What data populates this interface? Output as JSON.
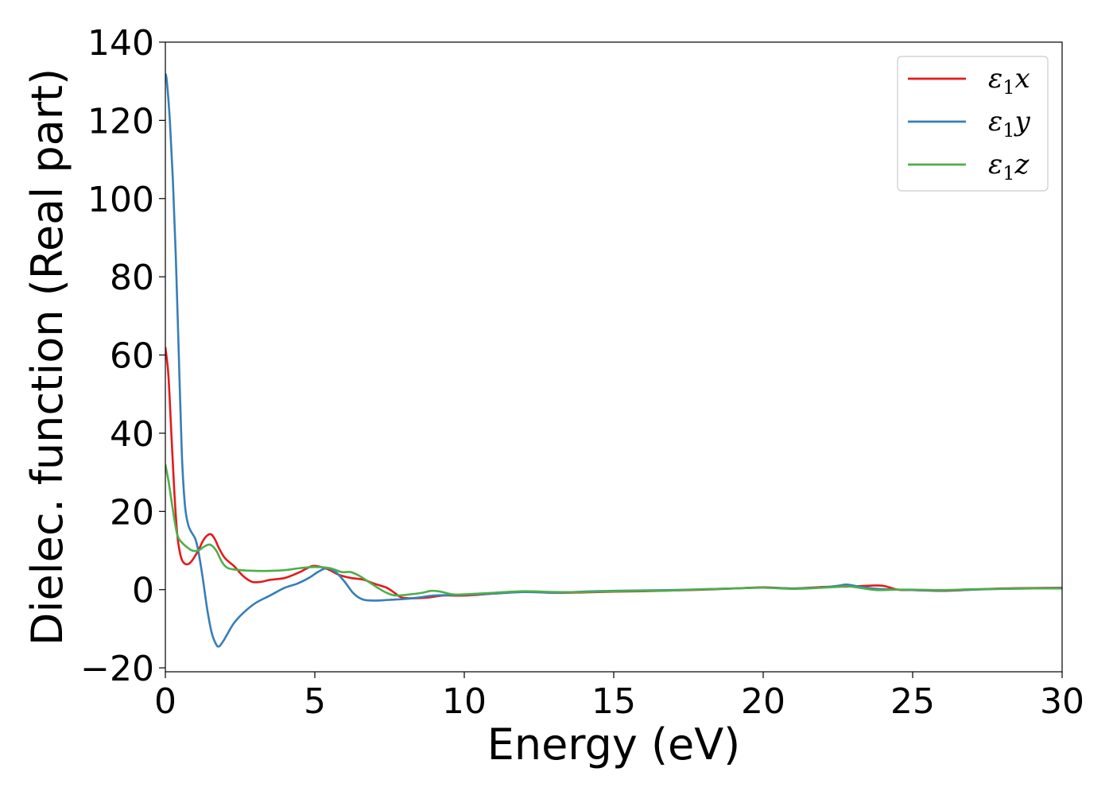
{
  "chart_data": {
    "type": "line",
    "title": "",
    "xlabel": "Energy (eV)",
    "ylabel": "Dielec. function (Real part)",
    "xlim": [
      0,
      30
    ],
    "ylim": [
      -21,
      140
    ],
    "xticks": [
      0,
      5,
      10,
      15,
      20,
      25,
      30
    ],
    "xtick_labels": [
      "0",
      "5",
      "10",
      "15",
      "20",
      "25",
      "30"
    ],
    "yticks": [
      -20,
      0,
      20,
      40,
      60,
      80,
      100,
      120,
      140
    ],
    "ytick_labels": [
      "−20",
      "0",
      "20",
      "40",
      "60",
      "80",
      "100",
      "120",
      "140"
    ],
    "grid": false,
    "legend_position": "top-right",
    "series": [
      {
        "name": "ε1x",
        "legend_symbol": "ε",
        "legend_subscript": "1",
        "legend_suffix": "x",
        "color": "#e41a1c",
        "points": [
          [
            0,
            62
          ],
          [
            0.1,
            55
          ],
          [
            0.2,
            40
          ],
          [
            0.3,
            25
          ],
          [
            0.4,
            14
          ],
          [
            0.5,
            9
          ],
          [
            0.6,
            7
          ],
          [
            0.75,
            6.5
          ],
          [
            0.9,
            7.5
          ],
          [
            1.1,
            10
          ],
          [
            1.3,
            13
          ],
          [
            1.5,
            14.2
          ],
          [
            1.65,
            13
          ],
          [
            1.8,
            10.5
          ],
          [
            2.0,
            8
          ],
          [
            2.3,
            6
          ],
          [
            2.6,
            3.5
          ],
          [
            2.9,
            2
          ],
          [
            3.2,
            2
          ],
          [
            3.5,
            2.5
          ],
          [
            4.0,
            3
          ],
          [
            4.5,
            4.5
          ],
          [
            4.9,
            6
          ],
          [
            5.2,
            5.8
          ],
          [
            5.5,
            5
          ],
          [
            5.8,
            3.8
          ],
          [
            6.2,
            3
          ],
          [
            6.6,
            2.6
          ],
          [
            7.0,
            1.5
          ],
          [
            7.4,
            0.5
          ],
          [
            7.7,
            -1
          ],
          [
            7.9,
            -2
          ],
          [
            8.3,
            -2.2
          ],
          [
            8.8,
            -2
          ],
          [
            9.3,
            -1.5
          ],
          [
            10,
            -1.5
          ],
          [
            11,
            -1
          ],
          [
            12,
            -0.5
          ],
          [
            13,
            -0.8
          ],
          [
            14,
            -0.7
          ],
          [
            15,
            -0.5
          ],
          [
            16,
            -0.4
          ],
          [
            17,
            -0.2
          ],
          [
            18,
            0
          ],
          [
            19,
            0.3
          ],
          [
            20,
            0.6
          ],
          [
            21,
            0.3
          ],
          [
            22,
            0.7
          ],
          [
            22.9,
            0.8
          ],
          [
            23.5,
            1
          ],
          [
            24,
            1
          ],
          [
            24.5,
            0
          ],
          [
            25,
            -0.1
          ],
          [
            26,
            -0.3
          ],
          [
            27,
            0
          ],
          [
            28,
            0.3
          ],
          [
            29,
            0.4
          ],
          [
            30,
            0.5
          ]
        ]
      },
      {
        "name": "ε1y",
        "legend_symbol": "ε",
        "legend_subscript": "1",
        "legend_suffix": "y",
        "color": "#377eb8",
        "points": [
          [
            0,
            132
          ],
          [
            0.05,
            130
          ],
          [
            0.15,
            120
          ],
          [
            0.25,
            105
          ],
          [
            0.35,
            85
          ],
          [
            0.45,
            60
          ],
          [
            0.55,
            35
          ],
          [
            0.65,
            22
          ],
          [
            0.75,
            17
          ],
          [
            0.85,
            15
          ],
          [
            1.0,
            13
          ],
          [
            1.1,
            10
          ],
          [
            1.25,
            3
          ],
          [
            1.4,
            -5
          ],
          [
            1.55,
            -11
          ],
          [
            1.7,
            -14
          ],
          [
            1.8,
            -14.5
          ],
          [
            1.95,
            -13
          ],
          [
            2.1,
            -11
          ],
          [
            2.3,
            -8.5
          ],
          [
            2.6,
            -6
          ],
          [
            3.0,
            -3.5
          ],
          [
            3.5,
            -1.5
          ],
          [
            4.0,
            0.5
          ],
          [
            4.4,
            1.5
          ],
          [
            4.8,
            3
          ],
          [
            5.1,
            4.5
          ],
          [
            5.4,
            5.5
          ],
          [
            5.7,
            4.5
          ],
          [
            6.0,
            2
          ],
          [
            6.3,
            -1
          ],
          [
            6.6,
            -2.5
          ],
          [
            7.0,
            -2.8
          ],
          [
            7.5,
            -2.6
          ],
          [
            8.0,
            -2.4
          ],
          [
            8.5,
            -2
          ],
          [
            9,
            -1.5
          ],
          [
            10,
            -1.3
          ],
          [
            11,
            -1
          ],
          [
            12,
            -0.6
          ],
          [
            13,
            -0.8
          ],
          [
            14,
            -0.5
          ],
          [
            15,
            -0.3
          ],
          [
            16,
            -0.2
          ],
          [
            17,
            -0.1
          ],
          [
            18,
            0.1
          ],
          [
            19,
            0.3
          ],
          [
            20,
            0.5
          ],
          [
            21,
            0.3
          ],
          [
            22,
            0.6
          ],
          [
            22.5,
            1.0
          ],
          [
            22.8,
            1.3
          ],
          [
            23.2,
            0.8
          ],
          [
            23.8,
            0.2
          ],
          [
            24.5,
            0
          ],
          [
            25,
            -0.1
          ],
          [
            26,
            -0.2
          ],
          [
            27,
            0
          ],
          [
            28,
            0.2
          ],
          [
            29,
            0.3
          ],
          [
            30,
            0.4
          ]
        ]
      },
      {
        "name": "ε1z",
        "legend_symbol": "ε",
        "legend_subscript": "1",
        "legend_suffix": "z",
        "color": "#4daf4a",
        "points": [
          [
            0,
            32
          ],
          [
            0.1,
            28
          ],
          [
            0.2,
            23
          ],
          [
            0.3,
            18
          ],
          [
            0.4,
            14
          ],
          [
            0.5,
            12.5
          ],
          [
            0.7,
            11
          ],
          [
            0.9,
            10
          ],
          [
            1.1,
            10
          ],
          [
            1.3,
            11
          ],
          [
            1.5,
            11.5
          ],
          [
            1.7,
            10
          ],
          [
            1.9,
            7
          ],
          [
            2.1,
            5.5
          ],
          [
            2.5,
            5
          ],
          [
            3.0,
            4.8
          ],
          [
            3.5,
            4.8
          ],
          [
            4.0,
            5
          ],
          [
            4.5,
            5.5
          ],
          [
            5.0,
            5.8
          ],
          [
            5.5,
            5.5
          ],
          [
            5.9,
            4.5
          ],
          [
            6.2,
            4.5
          ],
          [
            6.5,
            3.5
          ],
          [
            6.8,
            2
          ],
          [
            7.1,
            0.5
          ],
          [
            7.4,
            -0.8
          ],
          [
            7.7,
            -1.5
          ],
          [
            8.2,
            -1.2
          ],
          [
            8.6,
            -0.8
          ],
          [
            8.9,
            -0.3
          ],
          [
            9.2,
            -0.5
          ],
          [
            9.6,
            -1.2
          ],
          [
            10,
            -1.2
          ],
          [
            11,
            -0.8
          ],
          [
            12,
            -0.4
          ],
          [
            13,
            -0.6
          ],
          [
            14,
            -0.6
          ],
          [
            15,
            -0.4
          ],
          [
            16,
            -0.3
          ],
          [
            17,
            -0.2
          ],
          [
            18,
            0.1
          ],
          [
            19,
            0.3
          ],
          [
            20,
            0.5
          ],
          [
            21,
            0.2
          ],
          [
            22,
            0.5
          ],
          [
            22.5,
            0.7
          ],
          [
            22.8,
            0.9
          ],
          [
            23.2,
            0.5
          ],
          [
            23.8,
            -0.1
          ],
          [
            24.5,
            0
          ],
          [
            25,
            0
          ],
          [
            26,
            -0.1
          ],
          [
            27,
            0.1
          ],
          [
            28,
            0.2
          ],
          [
            29,
            0.3
          ],
          [
            30,
            0.3
          ]
        ]
      }
    ]
  }
}
